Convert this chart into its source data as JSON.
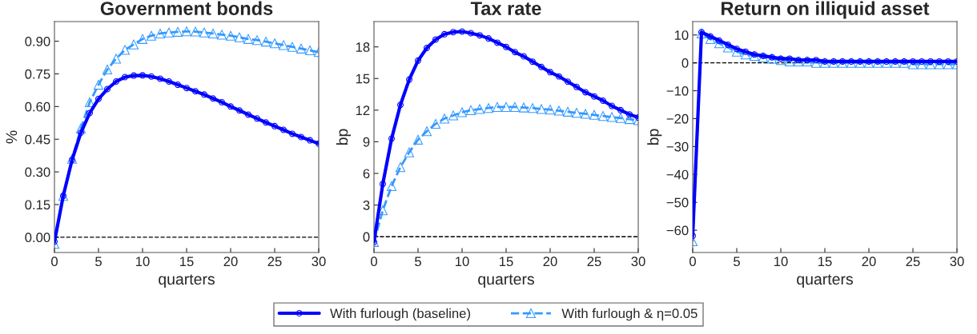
{
  "chart_data": [
    {
      "type": "line",
      "title": "Government bonds",
      "xlabel": "quarters",
      "ylabel": "%",
      "x": [
        0,
        1,
        2,
        3,
        4,
        5,
        6,
        7,
        8,
        9,
        10,
        11,
        12,
        13,
        14,
        15,
        16,
        17,
        18,
        19,
        20,
        21,
        22,
        23,
        24,
        25,
        26,
        27,
        28,
        29,
        30
      ],
      "xlim": [
        0,
        30
      ],
      "xticks": [
        0,
        5,
        10,
        15,
        20,
        25,
        30
      ],
      "ylim": [
        -0.07,
        0.99
      ],
      "yticks": [
        {
          "value": 0,
          "label": "0.00"
        },
        0.15,
        {
          "value": 0.3,
          "label": "0.30"
        },
        0.45,
        {
          "value": 0.6,
          "label": "0.60"
        },
        0.75,
        {
          "value": 0.9,
          "label": "0.90"
        }
      ],
      "grid": false,
      "legend": "bottom",
      "ref_lines": [
        {
          "axis": "y",
          "value": 0,
          "color": "#000000",
          "line_style": "dashed"
        }
      ],
      "series": [
        {
          "name": "With furlough (baseline)",
          "color": "#0000ff",
          "marker": "circle",
          "line_style": "solid",
          "values": [
            -0.02,
            0.19,
            0.355,
            0.48,
            0.57,
            0.635,
            0.68,
            0.715,
            0.735,
            0.742,
            0.743,
            0.738,
            0.728,
            0.715,
            0.7,
            0.685,
            0.67,
            0.655,
            0.637,
            0.62,
            0.6,
            0.582,
            0.563,
            0.545,
            0.527,
            0.51,
            0.493,
            0.475,
            0.46,
            0.445,
            0.43
          ]
        },
        {
          "name": "With furlough & η=0.05",
          "color": "#3399ff",
          "marker": "triangle",
          "line_style": "dashed",
          "values": [
            -0.03,
            0.19,
            0.36,
            0.5,
            0.62,
            0.7,
            0.77,
            0.82,
            0.86,
            0.885,
            0.91,
            0.925,
            0.935,
            0.94,
            0.943,
            0.945,
            0.944,
            0.94,
            0.935,
            0.93,
            0.925,
            0.918,
            0.91,
            0.905,
            0.898,
            0.89,
            0.882,
            0.874,
            0.866,
            0.858,
            0.85
          ]
        }
      ]
    },
    {
      "type": "line",
      "title": "Tax rate",
      "xlabel": "quarters",
      "ylabel": "bp",
      "x": [
        0,
        1,
        2,
        3,
        4,
        5,
        6,
        7,
        8,
        9,
        10,
        11,
        12,
        13,
        14,
        15,
        16,
        17,
        18,
        19,
        20,
        21,
        22,
        23,
        24,
        25,
        26,
        27,
        28,
        29,
        30
      ],
      "xlim": [
        0,
        30
      ],
      "xticks": [
        0,
        5,
        10,
        15,
        20,
        25,
        30
      ],
      "ylim": [
        -1.5,
        20.4
      ],
      "yticks": [
        0,
        3,
        6,
        9,
        12,
        15,
        18
      ],
      "grid": false,
      "ref_lines": [
        {
          "axis": "y",
          "value": 0,
          "color": "#000000",
          "line_style": "dashed"
        }
      ],
      "series": [
        {
          "color": "#0000ff",
          "marker": "circle",
          "line_style": "solid",
          "values": [
            -0.5,
            5.0,
            9.3,
            12.5,
            14.9,
            16.7,
            17.9,
            18.7,
            19.2,
            19.4,
            19.45,
            19.3,
            19.1,
            18.8,
            18.4,
            18.0,
            17.5,
            17.1,
            16.6,
            16.1,
            15.6,
            15.2,
            14.7,
            14.2,
            13.7,
            13.3,
            12.9,
            12.4,
            12.0,
            11.6,
            11.3
          ]
        },
        {
          "color": "#3399ff",
          "marker": "triangle",
          "line_style": "dashed",
          "values": [
            -0.5,
            2.5,
            4.8,
            6.6,
            8.0,
            9.2,
            10.0,
            10.7,
            11.2,
            11.5,
            11.8,
            12.0,
            12.1,
            12.2,
            12.3,
            12.3,
            12.3,
            12.25,
            12.2,
            12.1,
            12.05,
            11.95,
            11.85,
            11.75,
            11.65,
            11.55,
            11.45,
            11.35,
            11.25,
            11.15,
            11.05
          ]
        }
      ]
    },
    {
      "type": "line",
      "title": "Return on illiquid asset",
      "xlabel": "quarters",
      "ylabel": "bp",
      "x": [
        0,
        1,
        2,
        3,
        4,
        5,
        6,
        7,
        8,
        9,
        10,
        11,
        12,
        13,
        14,
        15,
        16,
        17,
        18,
        19,
        20,
        21,
        22,
        23,
        24,
        25,
        26,
        27,
        28,
        29,
        30
      ],
      "xlim": [
        0,
        30
      ],
      "xticks": [
        0,
        5,
        10,
        15,
        20,
        25,
        30
      ],
      "ylim": [
        -68,
        14.8
      ],
      "yticks": [
        {
          "value": -60,
          "label": "−60"
        },
        {
          "value": -50,
          "label": "−50"
        },
        {
          "value": -40,
          "label": "−40"
        },
        {
          "value": -30,
          "label": "−30"
        },
        {
          "value": -20,
          "label": "−20"
        },
        {
          "value": -10,
          "label": "−10"
        },
        0,
        10
      ],
      "grid": false,
      "ref_lines": [
        {
          "axis": "y",
          "value": 0,
          "color": "#000000",
          "line_style": "dashed"
        }
      ],
      "series": [
        {
          "color": "#0000ff",
          "marker": "circle",
          "line_style": "solid",
          "values": [
            -62,
            11,
            9.5,
            8,
            6.5,
            5,
            4,
            3,
            2.5,
            2,
            1.5,
            1.5,
            1,
            1,
            1,
            0.5,
            0.5,
            0.5,
            0.5,
            0.5,
            0.5,
            0.5,
            0.5,
            0.5,
            0.5,
            0.5,
            0.5,
            0.5,
            0.5,
            0.5,
            0.5
          ]
        },
        {
          "color": "#3399ff",
          "marker": "triangle",
          "line_style": "dashed",
          "values": [
            -64,
            10.5,
            8.5,
            7,
            5.5,
            4,
            3,
            2.5,
            2,
            1.5,
            1,
            0.5,
            0.5,
            0.5,
            0,
            0,
            0,
            0,
            0,
            0,
            0,
            0,
            0,
            0,
            0,
            -0.5,
            -0.5,
            -0.5,
            -0.5,
            -0.5,
            -0.5
          ]
        }
      ]
    }
  ]
}
